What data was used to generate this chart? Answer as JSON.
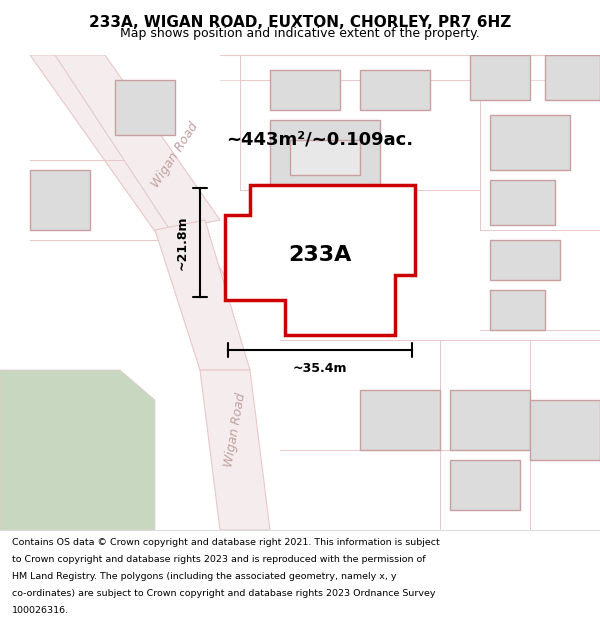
{
  "title": "233A, WIGAN ROAD, EUXTON, CHORLEY, PR7 6HZ",
  "subtitle": "Map shows position and indicative extent of the property.",
  "footer": "Contains OS data © Crown copyright and database right 2021. This information is subject to Crown copyright and database rights 2023 and is reproduced with the permission of HM Land Registry. The polygons (including the associated geometry, namely x, y co-ordinates) are subject to Crown copyright and database rights 2023 Ordnance Survey 100026316.",
  "bg_color": "#f5f0ee",
  "map_bg": "#ffffff",
  "road_color": "#e8c8c8",
  "road_fill": "#f5eded",
  "building_fill": "#dcdcdc",
  "building_edge": "#c8a0a0",
  "highlight_fill": "#ffffff",
  "highlight_edge": "#cc0000",
  "green_fill": "#c8d8c0",
  "area_text": "~443m²/~0.109ac.",
  "label_text": "233A",
  "dim_width": "~35.4m",
  "dim_height": "~21.8m",
  "road_label_upper": "Wigan Road",
  "road_label_lower": "Wigan Road"
}
